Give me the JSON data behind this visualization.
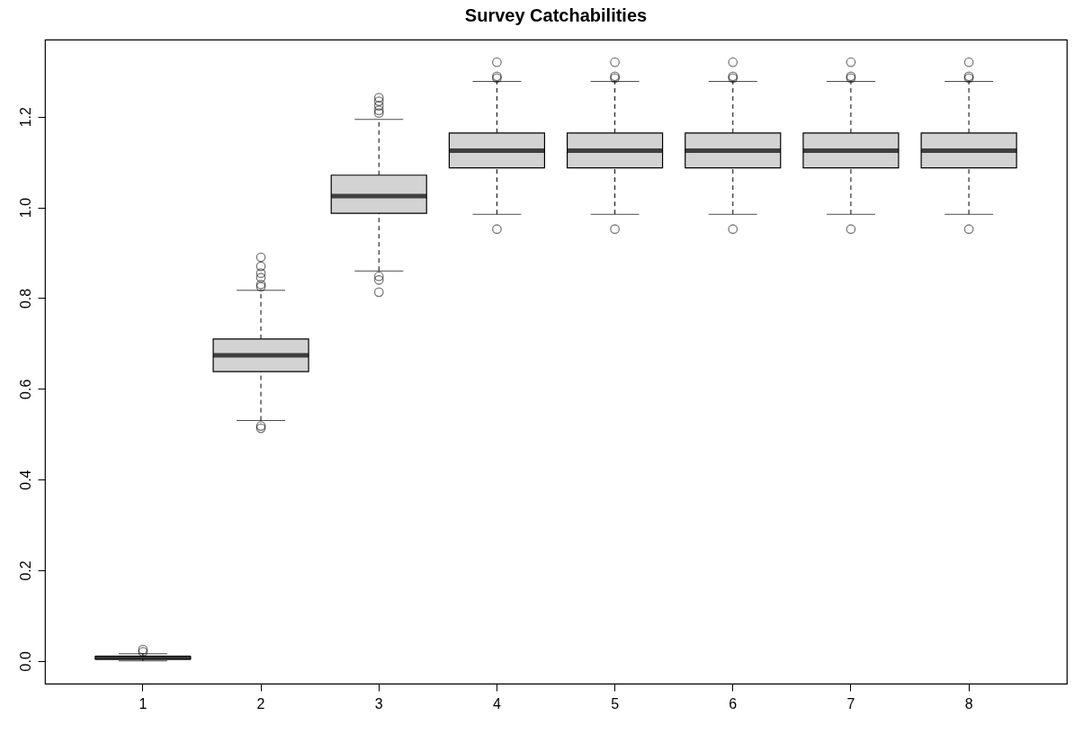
{
  "chart_data": {
    "type": "box",
    "title": "Survey Catchabilities",
    "categories": [
      "1",
      "2",
      "3",
      "4",
      "5",
      "6",
      "7",
      "8"
    ],
    "color": "#d3d3d3",
    "grid": false,
    "ylim": [
      -0.05,
      1.37
    ],
    "yticks": [
      {
        "value": 0,
        "label": "0.0"
      },
      0.2,
      0.4,
      0.6,
      0.8,
      {
        "value": 1,
        "label": "1.0"
      },
      1.2
    ],
    "boxes": [
      {
        "low": 0.0,
        "q1": 0.004,
        "median": 0.007,
        "q3": 0.01,
        "high": 0.016,
        "outliers": [
          0.02,
          0.025
        ]
      },
      {
        "low": 0.53,
        "q1": 0.638,
        "median": 0.674,
        "q3": 0.71,
        "high": 0.817,
        "outliers": [
          0.513,
          0.518,
          0.825,
          0.83,
          0.845,
          0.855,
          0.87,
          0.89
        ]
      },
      {
        "low": 0.86,
        "q1": 0.987,
        "median": 1.025,
        "q3": 1.071,
        "high": 1.194,
        "outliers": [
          0.813,
          0.84,
          0.848,
          1.208,
          1.214,
          1.224,
          1.234,
          1.242
        ]
      },
      {
        "low": 0.985,
        "q1": 1.087,
        "median": 1.125,
        "q3": 1.164,
        "high": 1.278,
        "outliers": [
          0.952,
          1.285,
          1.289,
          1.32
        ]
      },
      {
        "low": 0.985,
        "q1": 1.087,
        "median": 1.125,
        "q3": 1.164,
        "high": 1.278,
        "outliers": [
          0.952,
          1.285,
          1.289,
          1.32
        ]
      },
      {
        "low": 0.985,
        "q1": 1.087,
        "median": 1.125,
        "q3": 1.164,
        "high": 1.278,
        "outliers": [
          0.952,
          1.285,
          1.289,
          1.32
        ]
      },
      {
        "low": 0.985,
        "q1": 1.087,
        "median": 1.125,
        "q3": 1.164,
        "high": 1.278,
        "outliers": [
          0.952,
          1.285,
          1.289,
          1.32
        ]
      },
      {
        "low": 0.985,
        "q1": 1.087,
        "median": 1.125,
        "q3": 1.164,
        "high": 1.278,
        "outliers": [
          0.952,
          1.285,
          1.289,
          1.32
        ]
      }
    ]
  }
}
